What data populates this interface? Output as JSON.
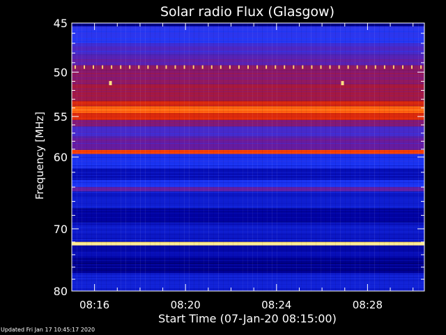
{
  "chart_data": {
    "type": "heatmap",
    "title": "Solar radio Flux (Glasgow)",
    "xlabel": "Start Time (07-Jan-20 08:15:00)",
    "ylabel": "Frequency [MHz]",
    "x_range_minutes": [
      0,
      15.5
    ],
    "ylim": [
      45,
      80
    ],
    "y_scale": "log",
    "x_ticks": [
      {
        "minute": 1,
        "label": "08:16"
      },
      {
        "minute": 5,
        "label": "08:20"
      },
      {
        "minute": 9,
        "label": "08:24"
      },
      {
        "minute": 13,
        "label": "08:28"
      }
    ],
    "y_ticks": [
      {
        "value": 45,
        "label": "45"
      },
      {
        "value": 50,
        "label": "50"
      },
      {
        "value": 55,
        "label": "55"
      },
      {
        "value": 60,
        "label": "60"
      },
      {
        "value": 70,
        "label": "70"
      },
      {
        "value": 80,
        "label": "80"
      }
    ],
    "y_minor_ticks": [
      46,
      47,
      48,
      49,
      51,
      52,
      53,
      54,
      56,
      57,
      58,
      59,
      62,
      64,
      66,
      68,
      72,
      74,
      76,
      78
    ],
    "bands": [
      {
        "f_from": 45.0,
        "f_to": 45.3,
        "intensity": 0.12
      },
      {
        "f_from": 45.3,
        "f_to": 47.0,
        "intensity": 0.3
      },
      {
        "f_from": 47.0,
        "f_to": 48.2,
        "intensity": 0.36
      },
      {
        "f_from": 48.2,
        "f_to": 49.3,
        "intensity": 0.4
      },
      {
        "f_from": 49.3,
        "f_to": 49.8,
        "intensity": 0.5
      },
      {
        "f_from": 49.8,
        "f_to": 51.3,
        "intensity": 0.48
      },
      {
        "f_from": 51.3,
        "f_to": 53.2,
        "intensity": 0.52
      },
      {
        "f_from": 53.2,
        "f_to": 53.8,
        "intensity": 0.62
      },
      {
        "f_from": 53.8,
        "f_to": 54.6,
        "intensity": 0.76
      },
      {
        "f_from": 54.6,
        "f_to": 55.4,
        "intensity": 0.64
      },
      {
        "f_from": 55.4,
        "f_to": 56.2,
        "intensity": 0.46
      },
      {
        "f_from": 56.2,
        "f_to": 57.5,
        "intensity": 0.36
      },
      {
        "f_from": 57.5,
        "f_to": 59.1,
        "intensity": 0.42
      },
      {
        "f_from": 59.1,
        "f_to": 59.6,
        "intensity": 0.7
      },
      {
        "f_from": 59.6,
        "f_to": 61.5,
        "intensity": 0.26
      },
      {
        "f_from": 61.5,
        "f_to": 63.0,
        "intensity": 0.18
      },
      {
        "f_from": 63.0,
        "f_to": 64.0,
        "intensity": 0.27
      },
      {
        "f_from": 64.0,
        "f_to": 64.6,
        "intensity": 0.4
      },
      {
        "f_from": 64.6,
        "f_to": 67.0,
        "intensity": 0.21
      },
      {
        "f_from": 67.0,
        "f_to": 69.0,
        "intensity": 0.15
      },
      {
        "f_from": 69.0,
        "f_to": 72.0,
        "intensity": 0.2
      },
      {
        "f_from": 72.0,
        "f_to": 72.5,
        "intensity": 0.94
      },
      {
        "f_from": 72.5,
        "f_to": 74.5,
        "intensity": 0.17
      },
      {
        "f_from": 74.5,
        "f_to": 77.0,
        "intensity": 0.13
      },
      {
        "f_from": 77.0,
        "f_to": 80.0,
        "intensity": 0.22
      }
    ],
    "spike_row_mhz": 49.5,
    "spike_interval_minutes": 0.4,
    "burst_points": [
      {
        "minute": 1.7,
        "frequency": 51.2
      },
      {
        "minute": 11.9,
        "frequency": 51.2
      }
    ],
    "colormap": [
      "#000000",
      "#0000a0",
      "#1e3cff",
      "#6a1a9c",
      "#c01818",
      "#ff4000",
      "#ffd040",
      "#ffffd0"
    ]
  },
  "footer": {
    "updated": "Updated Fri Jan 17 10:45:17 2020"
  }
}
